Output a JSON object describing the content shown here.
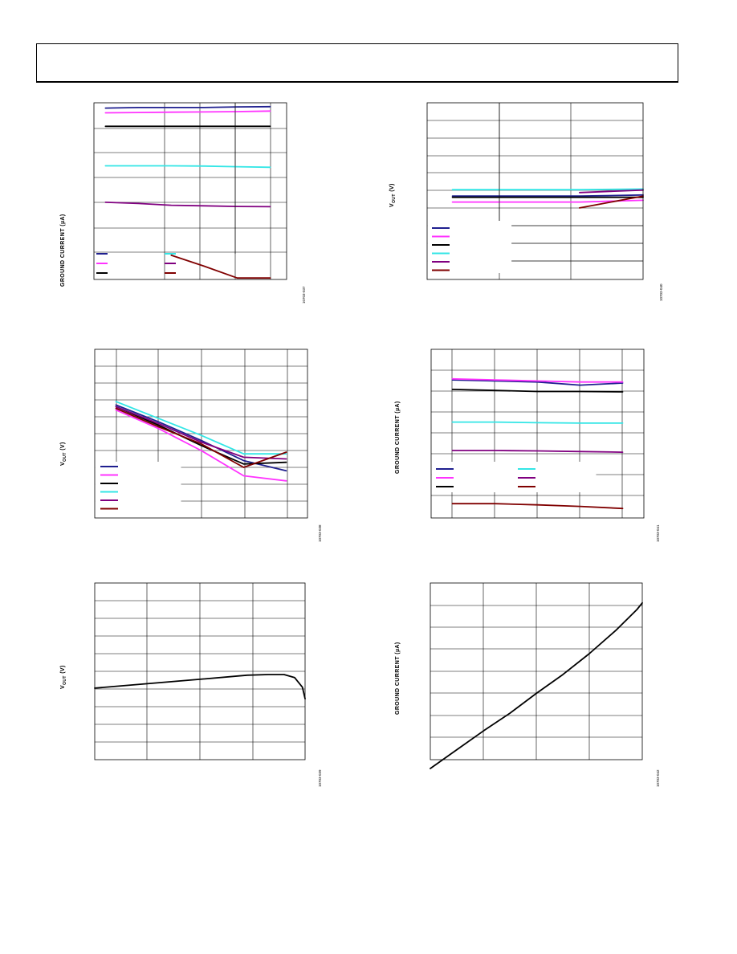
{
  "chart_data": [
    {
      "type": "line",
      "ylabel": "GROUND CURRENT (µA)",
      "figure_id": "10703-037",
      "grid": true,
      "legend": {
        "placement": "bottom-left",
        "entries": [
          "",
          "",
          "",
          "",
          "",
          ""
        ]
      },
      "colors": [
        "#1f1f8f",
        "#ff33ff",
        "#000000",
        "#33e6e6",
        "#800080",
        "#800000"
      ],
      "x": [
        0,
        1,
        2,
        3,
        4,
        5
      ],
      "xlim": [
        -0.35,
        5.5
      ],
      "ylim": [
        0,
        6
      ],
      "series": [
        {
          "values": [
            5.82,
            5.84,
            5.84,
            5.84,
            5.86,
            5.87
          ],
          "color": "#1f1f8f"
        },
        {
          "values": [
            5.66,
            5.67,
            5.68,
            5.69,
            5.7,
            5.72
          ],
          "color": "#ff33ff"
        },
        {
          "values": [
            5.2,
            5.2,
            5.2,
            5.2,
            5.2,
            5.2
          ],
          "color": "#000000"
        },
        {
          "values": [
            3.86,
            3.86,
            3.86,
            3.85,
            3.83,
            3.81
          ],
          "color": "#33e6e6"
        },
        {
          "values": [
            2.62,
            2.58,
            2.52,
            2.5,
            2.48,
            2.47
          ],
          "color": "#800080"
        },
        {
          "values": [
            null,
            null,
            0.82,
            0.45,
            0.05,
            0.05
          ],
          "color": "#800000"
        }
      ]
    },
    {
      "type": "line",
      "ylabel": "VOUT (V)",
      "ylabel_main": "V",
      "ylabel_sub": "OUT",
      "ylabel_unit": " (V)",
      "figure_id": "10703-040",
      "grid": true,
      "legend": {
        "placement": "bottom-left",
        "entries": [
          "",
          "",
          "",
          "",
          "",
          ""
        ]
      },
      "colors": [
        "#1f1f8f",
        "#ff33ff",
        "#000000",
        "#33e6e6",
        "#800080",
        "#800000"
      ],
      "x": [
        0,
        1,
        2,
        3
      ],
      "xlim": [
        -0.4,
        3.0
      ],
      "ylim": [
        0,
        10
      ],
      "series": [
        {
          "values": [
            4.72,
            4.72,
            4.72,
            4.78
          ],
          "color": "#1f1f8f"
        },
        {
          "values": [
            4.38,
            4.38,
            4.38,
            4.48
          ],
          "color": "#ff33ff"
        },
        {
          "values": [
            4.65,
            4.65,
            4.65,
            4.65
          ],
          "color": "#000000"
        },
        {
          "values": [
            5.08,
            5.08,
            5.08,
            5.12
          ],
          "color": "#33e6e6"
        },
        {
          "values": [
            null,
            null,
            4.92,
            5.06
          ],
          "color": "#800080"
        },
        {
          "values": [
            null,
            null,
            4.05,
            4.72
          ],
          "color": "#800000"
        }
      ]
    },
    {
      "type": "line",
      "ylabel": "VOUT (V)",
      "ylabel_main": "V",
      "ylabel_sub": "OUT",
      "ylabel_unit": " (V)",
      "figure_id": "10703-038",
      "grid": true,
      "legend": {
        "placement": "bottom-left",
        "entries": [
          "",
          "",
          "",
          "",
          "",
          ""
        ]
      },
      "colors": [
        "#1f1f8f",
        "#ff33ff",
        "#000000",
        "#33e6e6",
        "#800080",
        "#800000"
      ],
      "x": [
        0,
        1,
        2,
        3,
        4
      ],
      "xlim": [
        -0.5,
        4.5
      ],
      "ylim": [
        0,
        10
      ],
      "series": [
        {
          "values": [
            6.7,
            5.7,
            4.6,
            3.4,
            2.8
          ],
          "color": "#1f1f8f"
        },
        {
          "values": [
            6.4,
            5.3,
            4.0,
            2.5,
            2.2
          ],
          "color": "#ff33ff"
        },
        {
          "values": [
            6.6,
            5.5,
            4.3,
            3.2,
            3.3
          ],
          "color": "#000000"
        },
        {
          "values": [
            6.9,
            5.9,
            4.9,
            3.8,
            3.8
          ],
          "color": "#33e6e6"
        },
        {
          "values": [
            6.6,
            5.6,
            4.5,
            3.6,
            3.5
          ],
          "color": "#800080"
        },
        {
          "values": [
            6.5,
            5.4,
            4.4,
            3.0,
            3.9
          ],
          "color": "#800000"
        }
      ]
    },
    {
      "type": "line",
      "ylabel": "GROUND CURRENT (µA)",
      "figure_id": "10703-041",
      "grid": true,
      "legend": {
        "placement": "bottom-left",
        "entries": [
          "",
          "",
          "",
          "",
          "",
          ""
        ]
      },
      "colors": [
        "#1f1f8f",
        "#ff33ff",
        "#000000",
        "#33e6e6",
        "#800080",
        "#800000"
      ],
      "x": [
        0,
        1,
        2,
        3,
        4
      ],
      "xlim": [
        -0.5,
        4.5
      ],
      "ylim": [
        0,
        8
      ],
      "series": [
        {
          "values": [
            6.55,
            6.5,
            6.45,
            6.3,
            6.4
          ],
          "color": "#1f1f8f"
        },
        {
          "values": [
            6.6,
            6.55,
            6.5,
            6.45,
            6.45
          ],
          "color": "#ff33ff"
        },
        {
          "values": [
            6.1,
            6.05,
            6.0,
            6.0,
            5.98
          ],
          "color": "#000000"
        },
        {
          "values": [
            4.55,
            4.55,
            4.52,
            4.5,
            4.5
          ],
          "color": "#33e6e6"
        },
        {
          "values": [
            3.2,
            3.2,
            3.18,
            3.15,
            3.12
          ],
          "color": "#800080"
        },
        {
          "values": [
            0.68,
            0.68,
            0.62,
            0.55,
            0.45
          ],
          "color": "#800000"
        }
      ]
    },
    {
      "type": "line",
      "ylabel": "VOUT (V)",
      "ylabel_main": "V",
      "ylabel_sub": "OUT",
      "ylabel_unit": " (V)",
      "figure_id": "10703-039",
      "grid": true,
      "x": [
        0,
        1,
        2,
        2.9,
        3.3,
        3.6,
        3.8,
        3.95,
        4.0
      ],
      "xlim": [
        0,
        4
      ],
      "ylim": [
        0,
        10
      ],
      "series": [
        {
          "values": [
            4.05,
            4.3,
            4.55,
            4.78,
            4.82,
            4.82,
            4.65,
            4.1,
            3.45
          ],
          "color": "#000000"
        }
      ]
    },
    {
      "type": "line",
      "ylabel": "GROUND CURRENT (µA)",
      "figure_id": "10703-042",
      "grid": true,
      "x": [
        0,
        0.5,
        1,
        1.5,
        2,
        2.5,
        3,
        3.5,
        3.9,
        4.0
      ],
      "xlim": [
        0,
        4
      ],
      "ylim": [
        0,
        8
      ],
      "series": [
        {
          "values": [
            -0.4,
            0.45,
            1.3,
            2.1,
            3.0,
            3.85,
            4.8,
            5.85,
            6.8,
            7.1
          ],
          "color": "#000000"
        }
      ]
    }
  ]
}
